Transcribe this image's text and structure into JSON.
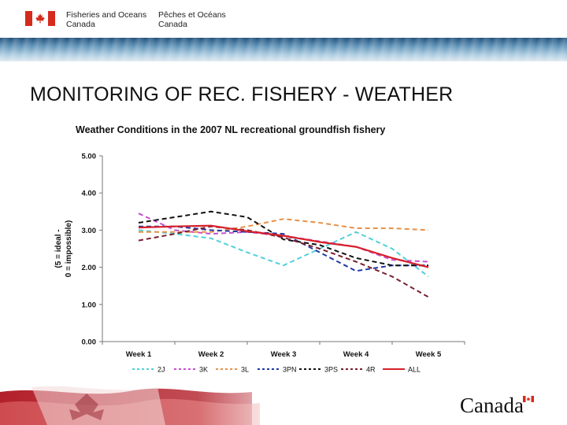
{
  "header": {
    "org_en_line1": "Fisheries and Oceans",
    "org_en_line2": "Canada",
    "org_fr_line1": "Pêches et Océans",
    "org_fr_line2": "Canada",
    "flag_icon": "canada-flag-icon"
  },
  "slide": {
    "title": "MONITORING OF REC. FISHERY - WEATHER"
  },
  "footer": {
    "wordmark": "Canada"
  },
  "chart_data": {
    "type": "line",
    "title": "Weather Conditions in the 2007 NL recreational groundfish fishery",
    "ylabel_line1": "(5 = ideal -",
    "ylabel_line2": "0 = impossible)",
    "categories": [
      "Week 1",
      "Week 2",
      "Week 3",
      "Week 4",
      "Week 5"
    ],
    "y_ticks": [
      "5.00",
      "4.00",
      "3.00",
      "2.00",
      "1.00",
      "0.00"
    ],
    "ylim": [
      0,
      5
    ],
    "grid": false,
    "legend_position": "bottom",
    "series": [
      {
        "name": "2J",
        "color": "#4fd1d9",
        "dash": "6,4",
        "width": 2,
        "points": [
          [
            1,
            3.0
          ],
          [
            1.5,
            2.9
          ],
          [
            2,
            2.78
          ],
          [
            2.5,
            2.4
          ],
          [
            3,
            2.05
          ],
          [
            3.5,
            2.5
          ],
          [
            4,
            2.95
          ],
          [
            4.5,
            2.5
          ],
          [
            5,
            1.75
          ]
        ]
      },
      {
        "name": "3K",
        "color": "#c74fd1",
        "dash": "6,4",
        "width": 2,
        "points": [
          [
            1,
            3.45
          ],
          [
            1.5,
            3.0
          ],
          [
            2,
            2.9
          ],
          [
            2.5,
            2.95
          ],
          [
            3,
            2.85
          ],
          [
            3.5,
            2.7
          ],
          [
            4,
            2.55
          ],
          [
            4.5,
            2.2
          ],
          [
            5,
            2.15
          ]
        ]
      },
      {
        "name": "3L",
        "color": "#e8914a",
        "dash": "6,4",
        "width": 2,
        "points": [
          [
            1,
            2.95
          ],
          [
            1.5,
            2.95
          ],
          [
            2,
            2.95
          ],
          [
            2.5,
            3.1
          ],
          [
            3,
            3.3
          ],
          [
            3.5,
            3.2
          ],
          [
            4,
            3.05
          ],
          [
            4.5,
            3.05
          ],
          [
            5,
            3.0
          ]
        ]
      },
      {
        "name": "3PN",
        "color": "#1f3aa6",
        "dash": "6,4",
        "width": 2,
        "points": [
          [
            1,
            3.1
          ],
          [
            1.5,
            3.1
          ],
          [
            2,
            3.0
          ],
          [
            2.5,
            2.95
          ],
          [
            3,
            2.9
          ],
          [
            3.5,
            2.4
          ],
          [
            4,
            1.9
          ],
          [
            4.5,
            2.05
          ],
          [
            5,
            2.05
          ]
        ]
      },
      {
        "name": "3PS",
        "color": "#111111",
        "dash": "6,4",
        "width": 2,
        "points": [
          [
            1,
            3.2
          ],
          [
            1.5,
            3.35
          ],
          [
            2,
            3.5
          ],
          [
            2.5,
            3.35
          ],
          [
            3,
            2.75
          ],
          [
            3.5,
            2.6
          ],
          [
            4,
            2.25
          ],
          [
            4.5,
            2.05
          ],
          [
            5,
            2.05
          ]
        ]
      },
      {
        "name": "4R",
        "color": "#7a1f2e",
        "dash": "6,4",
        "width": 2,
        "points": [
          [
            1,
            2.72
          ],
          [
            1.5,
            2.9
          ],
          [
            2,
            3.1
          ],
          [
            2.5,
            3.0
          ],
          [
            3,
            2.8
          ],
          [
            3.5,
            2.5
          ],
          [
            4,
            2.15
          ],
          [
            4.5,
            1.75
          ],
          [
            5,
            1.2
          ]
        ]
      },
      {
        "name": "ALL",
        "color": "#d6202a",
        "dash": "",
        "width": 2.2,
        "points": [
          [
            1,
            3.07
          ],
          [
            1.5,
            3.1
          ],
          [
            2,
            3.12
          ],
          [
            2.5,
            2.97
          ],
          [
            3,
            2.85
          ],
          [
            3.5,
            2.68
          ],
          [
            4,
            2.55
          ],
          [
            4.5,
            2.25
          ],
          [
            5,
            2.0
          ]
        ]
      }
    ]
  }
}
